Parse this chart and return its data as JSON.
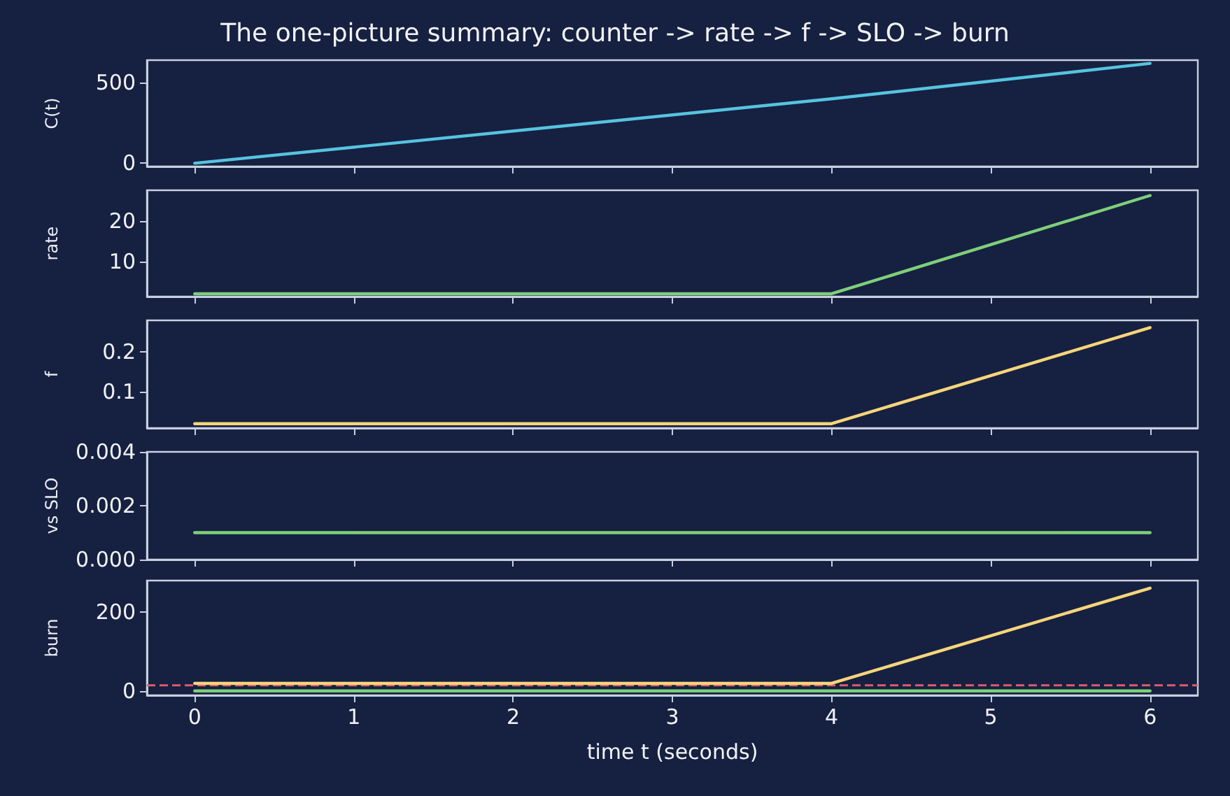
{
  "chart_data": [
    {
      "type": "line",
      "title": "The one-picture summary: counter -> rate -> f -> SLO -> burn",
      "ylabel": "C(t)",
      "x": [
        0,
        4,
        6
      ],
      "xlim": [
        -0.3,
        6.3
      ],
      "xticks": [
        0,
        1,
        2,
        3,
        4,
        5,
        6
      ],
      "ylim": [
        -20,
        640
      ],
      "yticks": [
        0,
        500
      ],
      "tick_labels": "y",
      "grid": false,
      "marker": "none",
      "line_style": "solid",
      "series": [
        {
          "color": "#56c3e0",
          "values": [
            0,
            400,
            620
          ]
        }
      ]
    },
    {
      "type": "line",
      "ylabel": "rate",
      "x": [
        0,
        4,
        6
      ],
      "xlim": [
        -0.3,
        6.3
      ],
      "xticks": [
        0,
        1,
        2,
        3,
        4,
        5,
        6
      ],
      "ylim": [
        1.3,
        27.7
      ],
      "yticks": [
        10,
        20
      ],
      "tick_labels": "y",
      "grid": false,
      "marker": "none",
      "line_style": "solid",
      "series": [
        {
          "color": "#7ecf7a",
          "values": [
            2,
            2,
            26.4
          ]
        }
      ]
    },
    {
      "type": "line",
      "ylabel": "f",
      "x": [
        0,
        4,
        6
      ],
      "xlim": [
        -0.3,
        6.3
      ],
      "xticks": [
        0,
        1,
        2,
        3,
        4,
        5,
        6
      ],
      "ylim": [
        0.009,
        0.278
      ],
      "yticks": [
        0.1,
        0.2
      ],
      "tick_labels": "y",
      "grid": false,
      "marker": "none",
      "line_style": "solid",
      "series": [
        {
          "color": "#f6d57a",
          "values": [
            0.02,
            0.02,
            0.26
          ]
        }
      ]
    },
    {
      "type": "line",
      "ylabel": "vs SLO",
      "x": [
        0,
        6
      ],
      "xlim": [
        -0.3,
        6.3
      ],
      "xticks": [
        0,
        1,
        2,
        3,
        4,
        5,
        6
      ],
      "ylim": [
        0,
        0.004
      ],
      "yticks": [
        {
          "value": 0,
          "label": "0.000"
        },
        {
          "value": 0.002,
          "label": "0.002"
        },
        {
          "value": 0.004,
          "label": "0.004"
        }
      ],
      "tick_labels": "y",
      "grid": false,
      "marker": "none",
      "line_style": "solid",
      "series": [
        {
          "color": "#7ecf7a",
          "values": [
            0.001,
            0.001
          ]
        }
      ]
    },
    {
      "type": "line",
      "ylabel": "burn",
      "xlabel": "time t (seconds)",
      "x": [
        0,
        4,
        6
      ],
      "xlim": [
        -0.3,
        6.3
      ],
      "xticks": [
        0,
        1,
        2,
        3,
        4,
        5,
        6
      ],
      "ylim": [
        -10,
        279
      ],
      "yticks": [
        0,
        200
      ],
      "grid": false,
      "marker": "none",
      "line_style": "solid",
      "series": [
        {
          "color": "#f6d57a",
          "values": [
            20,
            20,
            260
          ]
        },
        {
          "color": "#7ecf7a",
          "values": [
            1,
            1,
            1
          ]
        }
      ],
      "ref_lines": [
        {
          "axis": "y",
          "value": 15,
          "color": "#e05a6b",
          "line_style": "dashed"
        }
      ]
    }
  ]
}
